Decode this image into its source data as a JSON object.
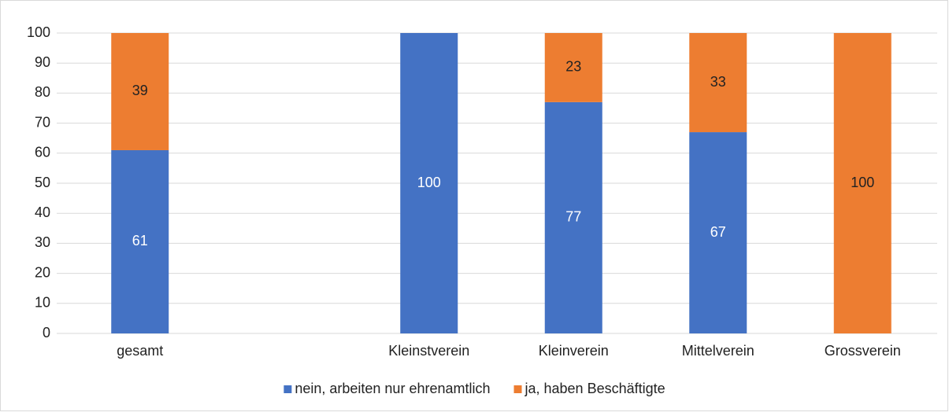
{
  "chart_data": {
    "type": "stacked_bar",
    "categories": [
      "gesamt",
      null,
      "Kleinstverein",
      "Kleinverein",
      "Mittelverein",
      "Grossverein"
    ],
    "series": [
      {
        "name": "nein, arbeiten nur ehrenamtlich",
        "color": "#4472c4",
        "label_color": "#ffffff",
        "values": [
          61,
          null,
          100,
          77,
          67,
          0
        ]
      },
      {
        "name": "ja, haben Beschäftigte",
        "color": "#ed7d31",
        "label_color": "#222222",
        "values": [
          39,
          null,
          0,
          23,
          33,
          100
        ]
      }
    ],
    "ylim": [
      0,
      100
    ],
    "yticks": [
      0,
      10,
      20,
      30,
      40,
      50,
      60,
      70,
      80,
      90,
      100
    ],
    "grid": true,
    "legend": "bottom"
  }
}
